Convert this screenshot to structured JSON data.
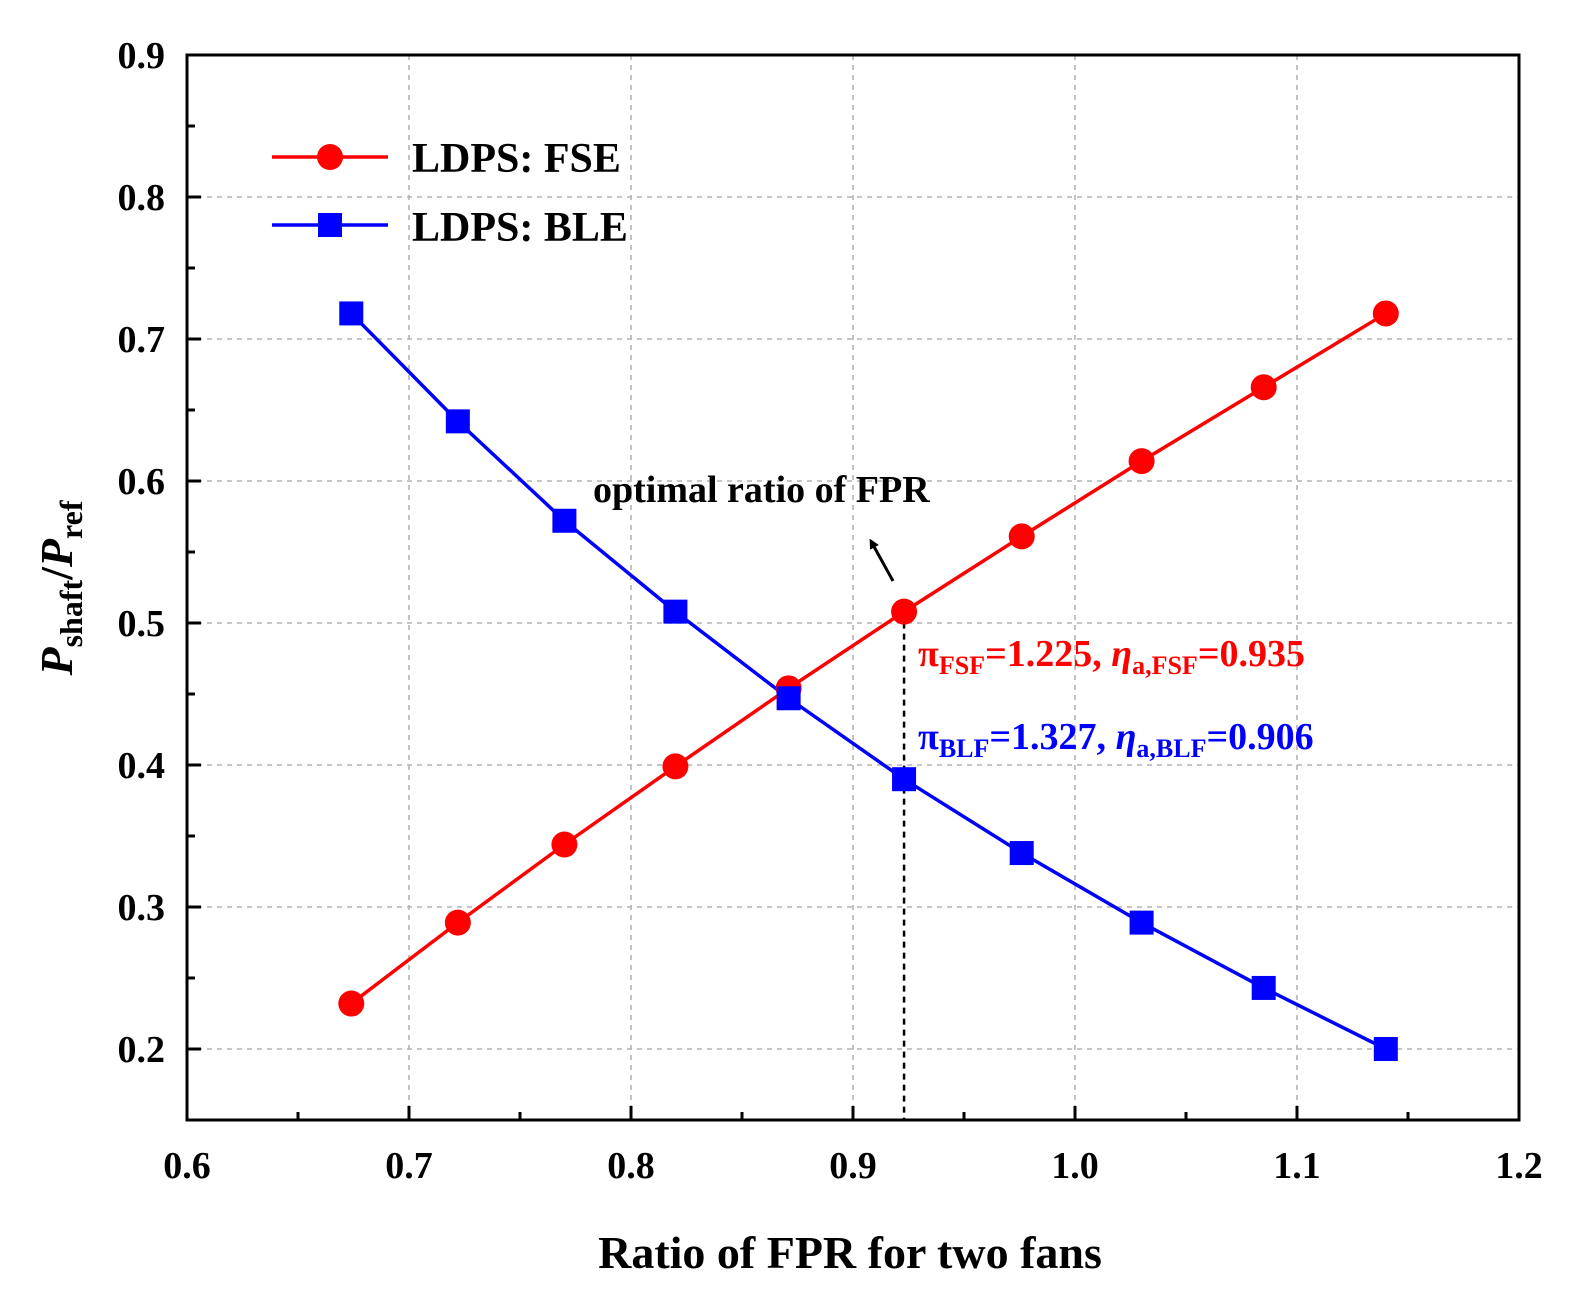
{
  "chart_data": {
    "type": "line",
    "title": "",
    "xlabel": "Ratio of FPR for two fans",
    "ylabel": {
      "p1": "P",
      "sub1": "shaft",
      "slash": "/",
      "p2": "P",
      "sub2": "ref"
    },
    "xlim": [
      0.6,
      1.2
    ],
    "ylim": [
      0.15,
      0.9
    ],
    "xticks": [
      0.6,
      0.7,
      0.8,
      0.9,
      1.0,
      1.1,
      1.2
    ],
    "xtick_labels": [
      "0.6",
      "0.7",
      "0.8",
      "0.9",
      "1.0",
      "1.1",
      "1.2"
    ],
    "yticks": [
      0.2,
      0.3,
      0.4,
      0.5,
      0.6,
      0.7,
      0.8,
      0.9
    ],
    "ytick_labels": [
      "0.2",
      "0.3",
      "0.4",
      "0.5",
      "0.6",
      "0.7",
      "0.8",
      "0.9"
    ],
    "grid": true,
    "legend_position": "top-left",
    "x": [
      0.674,
      0.722,
      0.77,
      0.82,
      0.871,
      0.923,
      0.976,
      1.03,
      1.085,
      1.14
    ],
    "series": [
      {
        "name": "LDPS: FSE",
        "color": "#ff0000",
        "marker": "circle",
        "values": [
          0.232,
          0.289,
          0.344,
          0.399,
          0.454,
          0.508,
          0.561,
          0.614,
          0.666,
          0.718
        ]
      },
      {
        "name": "LDPS: BLE",
        "color": "#0000ff",
        "marker": "square",
        "values": [
          0.718,
          0.642,
          0.572,
          0.508,
          0.447,
          0.39,
          0.338,
          0.289,
          0.243,
          0.2
        ]
      }
    ],
    "annotations": {
      "optimal_label": "optimal ratio of FPR",
      "optimal_x": 0.923,
      "fsf": {
        "color": "#ff0000",
        "pi": "π",
        "pi_sub": "FSF",
        "pi_val": "=1.225, ",
        "eta": "η",
        "eta_sub": "a,FSF",
        "eta_val": "=0.935"
      },
      "blf": {
        "color": "#0000ff",
        "pi": "π",
        "pi_sub": "BLF",
        "pi_val": "=1.327, ",
        "eta": "η",
        "eta_sub": "a,BLF",
        "eta_val": "=0.906"
      }
    }
  }
}
